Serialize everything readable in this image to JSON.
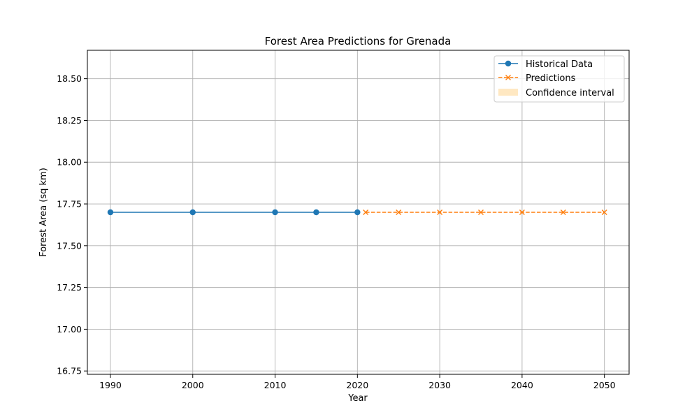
{
  "chart_data": {
    "type": "line",
    "title": "Forest Area Predictions for Grenada",
    "xlabel": "Year",
    "ylabel": "Forest Area (sq km)",
    "xlim": [
      1987.2,
      2053
    ],
    "ylim": [
      16.73,
      18.67
    ],
    "xticks": [
      1990,
      2000,
      2010,
      2020,
      2030,
      2040,
      2050
    ],
    "yticks": [
      16.75,
      17.0,
      17.25,
      17.5,
      17.75,
      18.0,
      18.25,
      18.5
    ],
    "grid": true,
    "legend_position": "top-right",
    "series": [
      {
        "name": "Historical Data",
        "color": "#1f77b4",
        "marker": "circle",
        "line_style": "solid",
        "x": [
          1990,
          2000,
          2010,
          2015,
          2020
        ],
        "y": [
          17.7,
          17.7,
          17.7,
          17.7,
          17.7
        ]
      },
      {
        "name": "Predictions",
        "color": "#ff7f0e",
        "marker": "x",
        "line_style": "dashed",
        "x": [
          2021,
          2025,
          2030,
          2035,
          2040,
          2045,
          2050
        ],
        "y": [
          17.7,
          17.7,
          17.7,
          17.7,
          17.7,
          17.7,
          17.7
        ]
      }
    ],
    "confidence_interval": {
      "name": "Confidence interval",
      "color": "#ffe8c2",
      "x": [
        2021,
        2025,
        2030,
        2035,
        2040,
        2045,
        2050
      ],
      "lower": [
        17.7,
        17.7,
        17.7,
        17.7,
        17.7,
        17.7,
        17.7
      ],
      "upper": [
        17.7,
        17.7,
        17.7,
        17.7,
        17.7,
        17.7,
        17.7
      ]
    }
  }
}
